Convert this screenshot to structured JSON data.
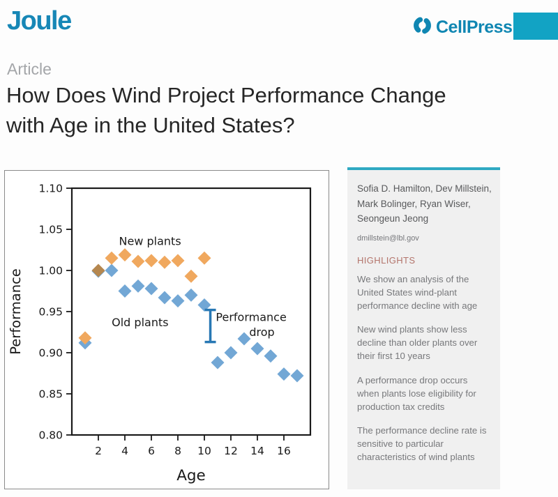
{
  "brand": {
    "journal": "Joule",
    "publisher": "CellPress",
    "journal_color": "#1787B6",
    "publisher_color": "#0F86B2",
    "corner_rect_color": "#12A3C4"
  },
  "article": {
    "kicker": "Article",
    "title_lines": [
      "How Does Wind Project Performance Change",
      "with Age in the United States?"
    ]
  },
  "sidebar": {
    "authors": "Sofia D. Hamilton, Dev Millstein, Mark Bolinger, Ryan Wiser, Seongeun Jeong",
    "email": "dmillstein@lbl.gov",
    "highlights_heading": "HIGHLIGHTS",
    "highlights": [
      "We show an analysis of the United States wind-plant performance decline with age",
      "New wind plants show less decline than older plants over their first 10 years",
      "A performance drop occurs when plants lose eligibility for production tax credits",
      "The performance decline rate is sensitive to particular characteristics of wind plants"
    ],
    "accent_color": "#2FA9C2"
  },
  "chart_data": {
    "type": "scatter",
    "title": "",
    "xlabel": "Age",
    "ylabel": "Performance",
    "xlim": [
      0,
      18
    ],
    "ylim": [
      0.8,
      1.1
    ],
    "x_ticks": [
      2,
      4,
      6,
      8,
      10,
      12,
      14,
      16
    ],
    "y_ticks": [
      0.8,
      0.85,
      0.9,
      0.95,
      1.0,
      1.05,
      1.1
    ],
    "y_tick_labels": [
      "0.80",
      "0.85",
      "0.90",
      "0.95",
      "1.00",
      "1.05",
      "1.10"
    ],
    "grid": false,
    "marker": "diamond",
    "legend_position": "in-plot-text-labels",
    "series": [
      {
        "name": "Old plants",
        "color": "#72A7D5",
        "x": [
          1,
          2,
          3,
          4,
          5,
          6,
          7,
          8,
          9,
          10,
          11,
          12,
          13,
          14,
          15,
          16,
          17
        ],
        "y": [
          0.912,
          0.999,
          1.0,
          0.975,
          0.981,
          0.978,
          0.967,
          0.963,
          0.97,
          0.958,
          0.888,
          0.9,
          0.917,
          0.905,
          0.896,
          0.874,
          0.872
        ]
      },
      {
        "name": "New plants",
        "color": "#F0A85E",
        "x": [
          1,
          2,
          3,
          4,
          5,
          6,
          7,
          8,
          9,
          10
        ],
        "y": [
          0.918,
          1.0,
          1.015,
          1.019,
          1.011,
          1.012,
          1.01,
          1.012,
          0.993,
          1.015
        ],
        "point_color_overrides": {
          "2": "#B5874F"
        }
      }
    ],
    "labels": [
      {
        "text": "New plants",
        "x": 5.9,
        "y": 1.031,
        "color": "#F2B172",
        "size": 16,
        "anchor": "middle"
      },
      {
        "text": "Old plants",
        "x": 5.15,
        "y": 0.932,
        "color": "#7FABD0",
        "size": 16,
        "anchor": "middle"
      }
    ],
    "annotation": {
      "color": "#2878B4",
      "bar": {
        "x": 10.45,
        "top": 0.952,
        "bottom": 0.913
      },
      "text_lines": [
        {
          "text": "Performance",
          "x": 16.2,
          "y": 0.9385
        },
        {
          "text": "drop",
          "x": 15.3,
          "y": 0.9205
        }
      ],
      "size": 16
    }
  }
}
